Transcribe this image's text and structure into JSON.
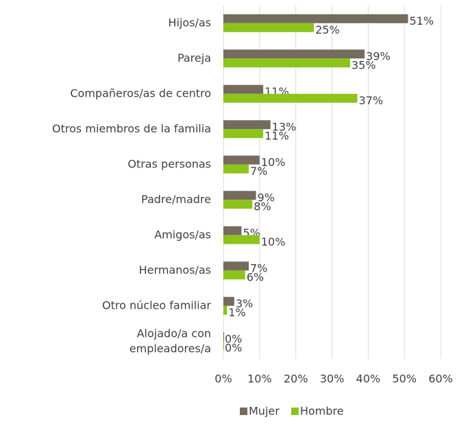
{
  "chart_data": {
    "type": "hbar",
    "categories": [
      "Hijos/as",
      "Pareja",
      "Compañeros/as de centro",
      "Otros miembros de la familia",
      "Otras personas",
      "Padre/madre",
      "Amigos/as",
      "Hermanos/as",
      "Otro núcleo familiar",
      "Alojado/a con\nempleadores/a"
    ],
    "series": [
      {
        "name": "Mujer",
        "color": "#756b5e",
        "values": [
          51,
          39,
          11,
          13,
          10,
          9,
          5,
          7,
          3,
          0
        ],
        "value_labels": [
          "51%",
          "39%",
          "11%",
          "13%",
          "10%",
          "9%",
          "5%",
          "7%",
          "3%",
          "0%"
        ]
      },
      {
        "name": "Hombre",
        "color": "#8cc41c",
        "values": [
          25,
          35,
          37,
          11,
          7,
          8,
          10,
          6,
          1,
          0
        ],
        "value_labels": [
          "25%",
          "35%",
          "37%",
          "11%",
          "7%",
          "8%",
          "10%",
          "6%",
          "1%",
          "0%"
        ]
      }
    ],
    "xlim": [
      0,
      60
    ],
    "xticks": [
      {
        "value": 0,
        "label": "0%"
      },
      {
        "value": 10,
        "label": "10%"
      },
      {
        "value": 20,
        "label": "20%"
      },
      {
        "value": 30,
        "label": "30%"
      },
      {
        "value": 40,
        "label": "40%"
      },
      {
        "value": 50,
        "label": "50%"
      },
      {
        "value": 60,
        "label": "60%"
      }
    ],
    "grid": true,
    "legend": "bottom"
  }
}
